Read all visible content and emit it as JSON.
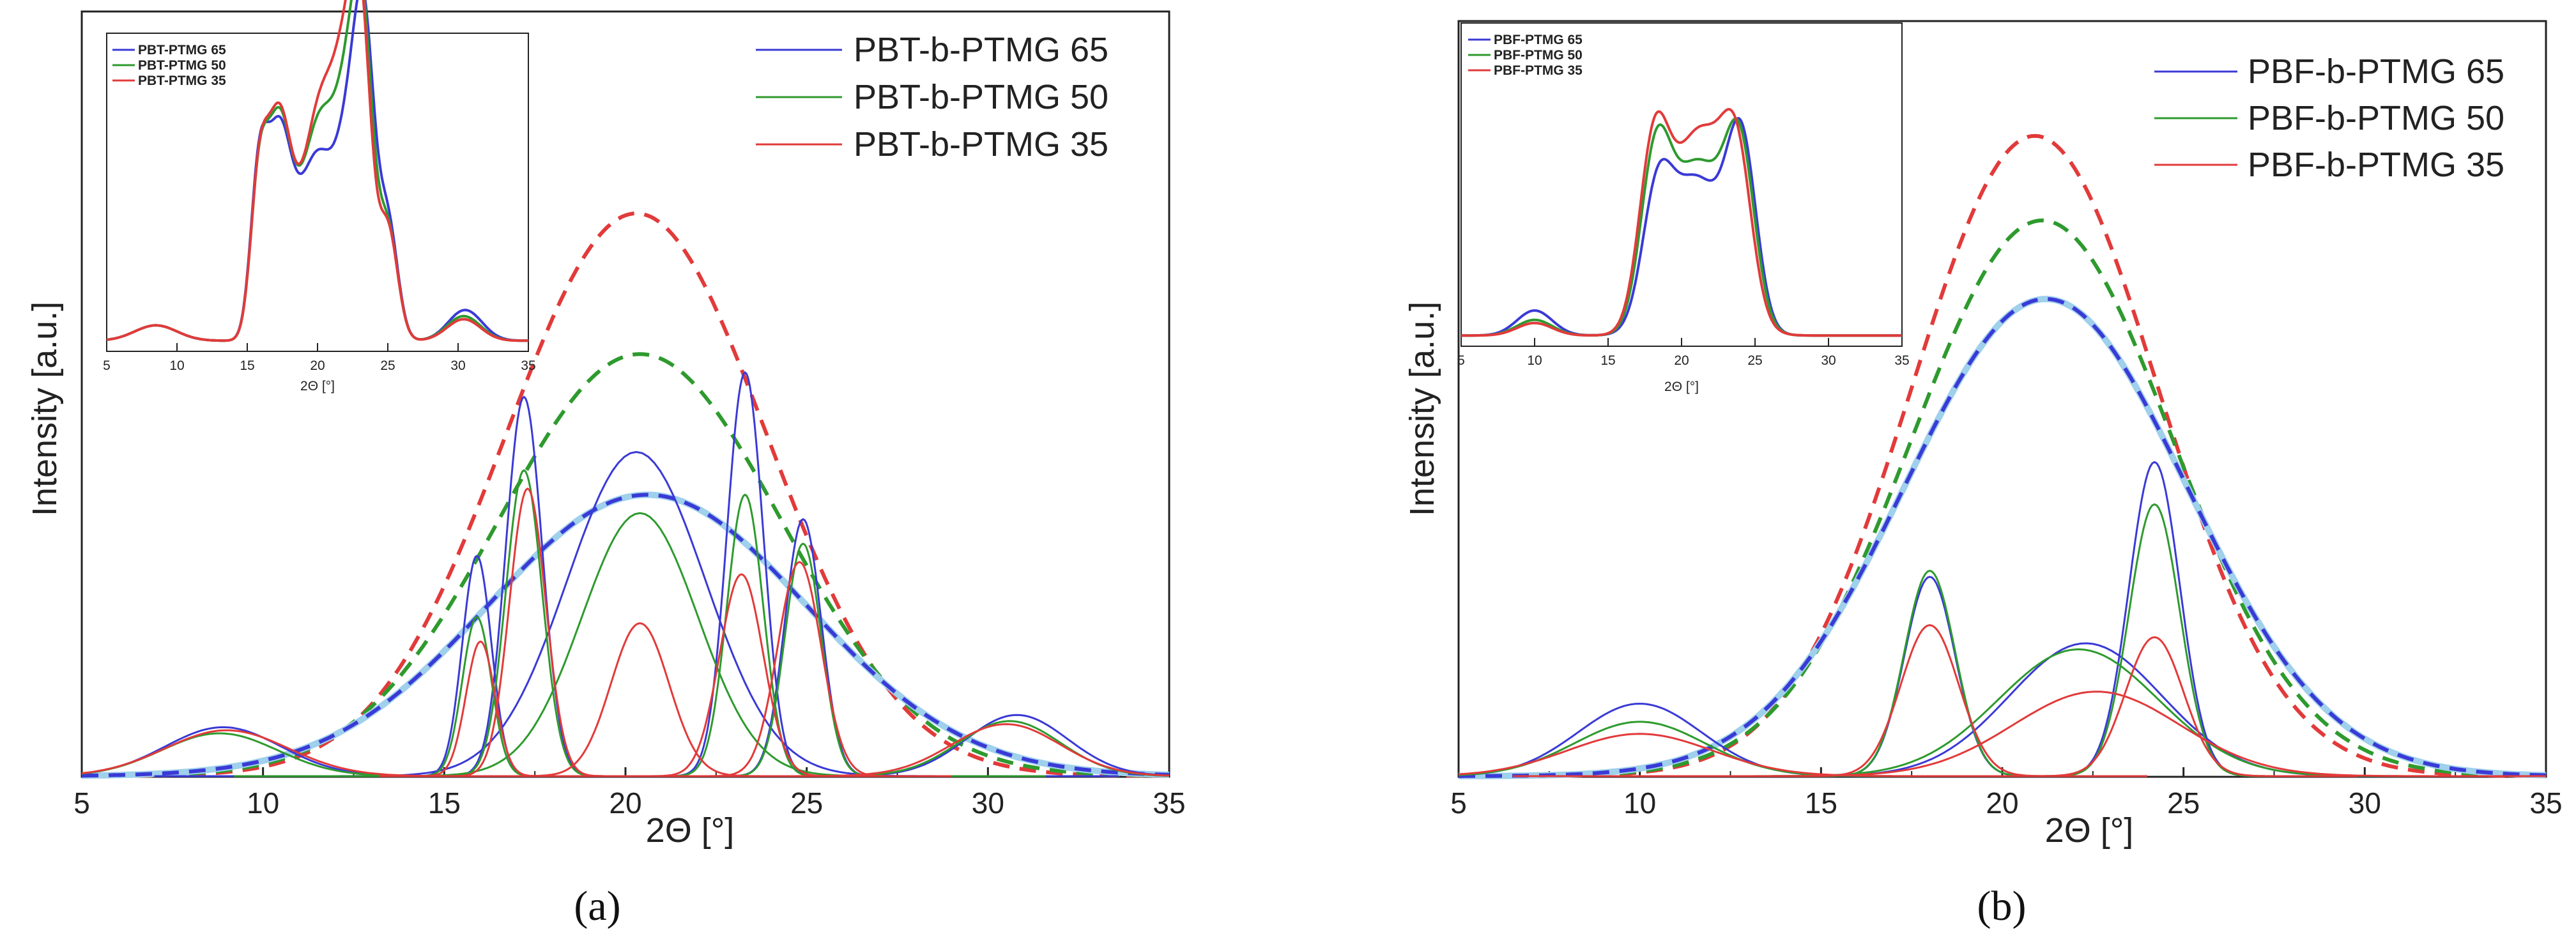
{
  "colors": {
    "blue": "#3a3ad6",
    "green": "#2e9a2e",
    "red": "#e23a3a",
    "light_blue": "#9fd0ec",
    "axis": "#222222"
  },
  "chart_data": [
    {
      "type": "line",
      "panel_label": "(a)",
      "xlabel": "2Θ [°]",
      "ylabel": "Intensity [a.u.]",
      "xlim": [
        5,
        35
      ],
      "ylim": [
        0,
        1.25
      ],
      "xticks": [
        5,
        10,
        15,
        20,
        25,
        30,
        35
      ],
      "legend": [
        "PBT-b-PTMG 65",
        "PBT-b-PTMG 50",
        "PBT-b-PTMG 35"
      ],
      "series": [
        {
          "name": "PBT-b-PTMG 65",
          "color": "blue",
          "envelope": {
            "center": 20.6,
            "height": 0.46,
            "width": 4.4
          },
          "peaks": [
            [
              8.9,
              0.08,
              1.6
            ],
            [
              15.9,
              0.36,
              0.4
            ],
            [
              17.2,
              0.62,
              0.5
            ],
            [
              20.3,
              0.53,
              1.9
            ],
            [
              23.3,
              0.66,
              0.5
            ],
            [
              24.9,
              0.42,
              0.5
            ],
            [
              30.8,
              0.1,
              1.4
            ]
          ]
        },
        {
          "name": "PBT-b-PTMG 50",
          "color": "green",
          "envelope": {
            "center": 20.4,
            "height": 0.69,
            "width": 3.9
          },
          "peaks": [
            [
              8.8,
              0.07,
              1.6
            ],
            [
              15.9,
              0.26,
              0.4
            ],
            [
              17.2,
              0.5,
              0.5
            ],
            [
              20.4,
              0.43,
              1.6
            ],
            [
              23.3,
              0.46,
              0.5
            ],
            [
              24.9,
              0.38,
              0.5
            ],
            [
              30.6,
              0.09,
              1.4
            ]
          ]
        },
        {
          "name": "PBT-b-PTMG 35",
          "color": "red",
          "envelope": {
            "center": 20.3,
            "height": 0.92,
            "width": 3.6
          },
          "peaks": [
            [
              9.0,
              0.075,
              1.7
            ],
            [
              16.0,
              0.22,
              0.4
            ],
            [
              17.3,
              0.47,
              0.5
            ],
            [
              20.4,
              0.25,
              0.8
            ],
            [
              23.2,
              0.33,
              0.6
            ],
            [
              24.8,
              0.35,
              0.6
            ],
            [
              30.5,
              0.085,
              1.5
            ]
          ]
        }
      ],
      "inset": {
        "xlabel": "2Θ [°]",
        "xlim": [
          5,
          35
        ],
        "xticks": [
          5,
          10,
          15,
          20,
          25,
          30,
          35
        ],
        "legend": [
          "PBT-PTMG 65",
          "PBT-PTMG 50",
          "PBT-PTMG 35"
        ],
        "series": [
          {
            "name": "PBT-PTMG 65",
            "color": "blue",
            "peaks": [
              [
                8.5,
                0.05,
                1.5
              ],
              [
                15.8,
                0.45,
                0.6
              ],
              [
                17.2,
                0.62,
                0.9
              ],
              [
                20.0,
                0.6,
                1.4
              ],
              [
                22.4,
                0.55,
                0.9
              ],
              [
                23.4,
                0.75,
                0.7
              ],
              [
                25.0,
                0.38,
                0.7
              ],
              [
                30.5,
                0.1,
                1.2
              ]
            ]
          },
          {
            "name": "PBT-PTMG 50",
            "color": "green",
            "peaks": [
              [
                8.5,
                0.05,
                1.5
              ],
              [
                15.8,
                0.42,
                0.6
              ],
              [
                17.2,
                0.66,
                0.9
              ],
              [
                20.2,
                0.72,
                1.4
              ],
              [
                22.4,
                0.6,
                0.9
              ],
              [
                23.3,
                0.68,
                0.7
              ],
              [
                25.0,
                0.36,
                0.7
              ],
              [
                30.4,
                0.08,
                1.2
              ]
            ]
          },
          {
            "name": "PBT-PTMG 35",
            "color": "red",
            "peaks": [
              [
                8.5,
                0.05,
                1.5
              ],
              [
                15.8,
                0.42,
                0.6
              ],
              [
                17.2,
                0.68,
                0.9
              ],
              [
                20.3,
                0.78,
                1.4
              ],
              [
                22.3,
                0.62,
                0.9
              ],
              [
                23.2,
                0.66,
                0.7
              ],
              [
                25.0,
                0.36,
                0.7
              ],
              [
                30.4,
                0.07,
                1.2
              ]
            ]
          }
        ]
      }
    },
    {
      "type": "line",
      "panel_label": "(b)",
      "xlabel": "2Θ [°]",
      "ylabel": "Intensity [a.u.]",
      "xlim": [
        5,
        35
      ],
      "ylim": [
        0,
        1.25
      ],
      "xticks": [
        5,
        10,
        15,
        20,
        25,
        30,
        35
      ],
      "legend": [
        "PBF-b-PTMG 65",
        "PBF-b-PTMG 50",
        "PBF-b-PTMG 35"
      ],
      "series": [
        {
          "name": "PBF-b-PTMG 65",
          "color": "blue",
          "envelope": {
            "center": 21.2,
            "height": 0.79,
            "width": 3.9
          },
          "peaks": [
            [
              10.0,
              0.12,
              1.7
            ],
            [
              18.0,
              0.33,
              0.7
            ],
            [
              22.3,
              0.22,
              2.1
            ],
            [
              24.2,
              0.52,
              0.7
            ]
          ]
        },
        {
          "name": "PBF-b-PTMG 50",
          "color": "green",
          "envelope": {
            "center": 21.1,
            "height": 0.92,
            "width": 3.6
          },
          "peaks": [
            [
              10.0,
              0.09,
              1.8
            ],
            [
              18.0,
              0.34,
              0.7
            ],
            [
              22.1,
              0.21,
              2.2
            ],
            [
              24.2,
              0.45,
              0.7
            ]
          ]
        },
        {
          "name": "PBF-b-PTMG 35",
          "color": "red",
          "envelope": {
            "center": 20.9,
            "height": 1.06,
            "width": 3.4
          },
          "peaks": [
            [
              10.0,
              0.07,
              2.0
            ],
            [
              18.0,
              0.25,
              0.8
            ],
            [
              22.6,
              0.14,
              2.3
            ],
            [
              24.2,
              0.23,
              0.8
            ]
          ]
        }
      ],
      "inset": {
        "xlabel": "2Θ [°]",
        "xlim": [
          5,
          35
        ],
        "xticks": [
          5,
          10,
          15,
          20,
          25,
          30,
          35
        ],
        "legend": [
          "PBF-PTMG 65",
          "PBF-PTMG 50",
          "PBF-PTMG 35"
        ],
        "series": [
          {
            "name": "PBF-PTMG 65",
            "color": "blue",
            "peaks": [
              [
                10.0,
                0.08,
                1.2
              ],
              [
                18.3,
                0.35,
                1.0
              ],
              [
                21.0,
                0.5,
                1.9
              ],
              [
                24.1,
                0.55,
                1.0
              ]
            ]
          },
          {
            "name": "PBF-PTMG 50",
            "color": "green",
            "peaks": [
              [
                10.0,
                0.05,
                1.2
              ],
              [
                18.2,
                0.48,
                1.0
              ],
              [
                21.1,
                0.55,
                1.9
              ],
              [
                24.0,
                0.5,
                1.0
              ]
            ]
          },
          {
            "name": "PBF-PTMG 35",
            "color": "red",
            "peaks": [
              [
                10.0,
                0.04,
                1.2
              ],
              [
                18.1,
                0.52,
                1.0
              ],
              [
                21.2,
                0.65,
                1.9
              ],
              [
                23.8,
                0.42,
                1.0
              ]
            ]
          }
        ]
      }
    }
  ]
}
